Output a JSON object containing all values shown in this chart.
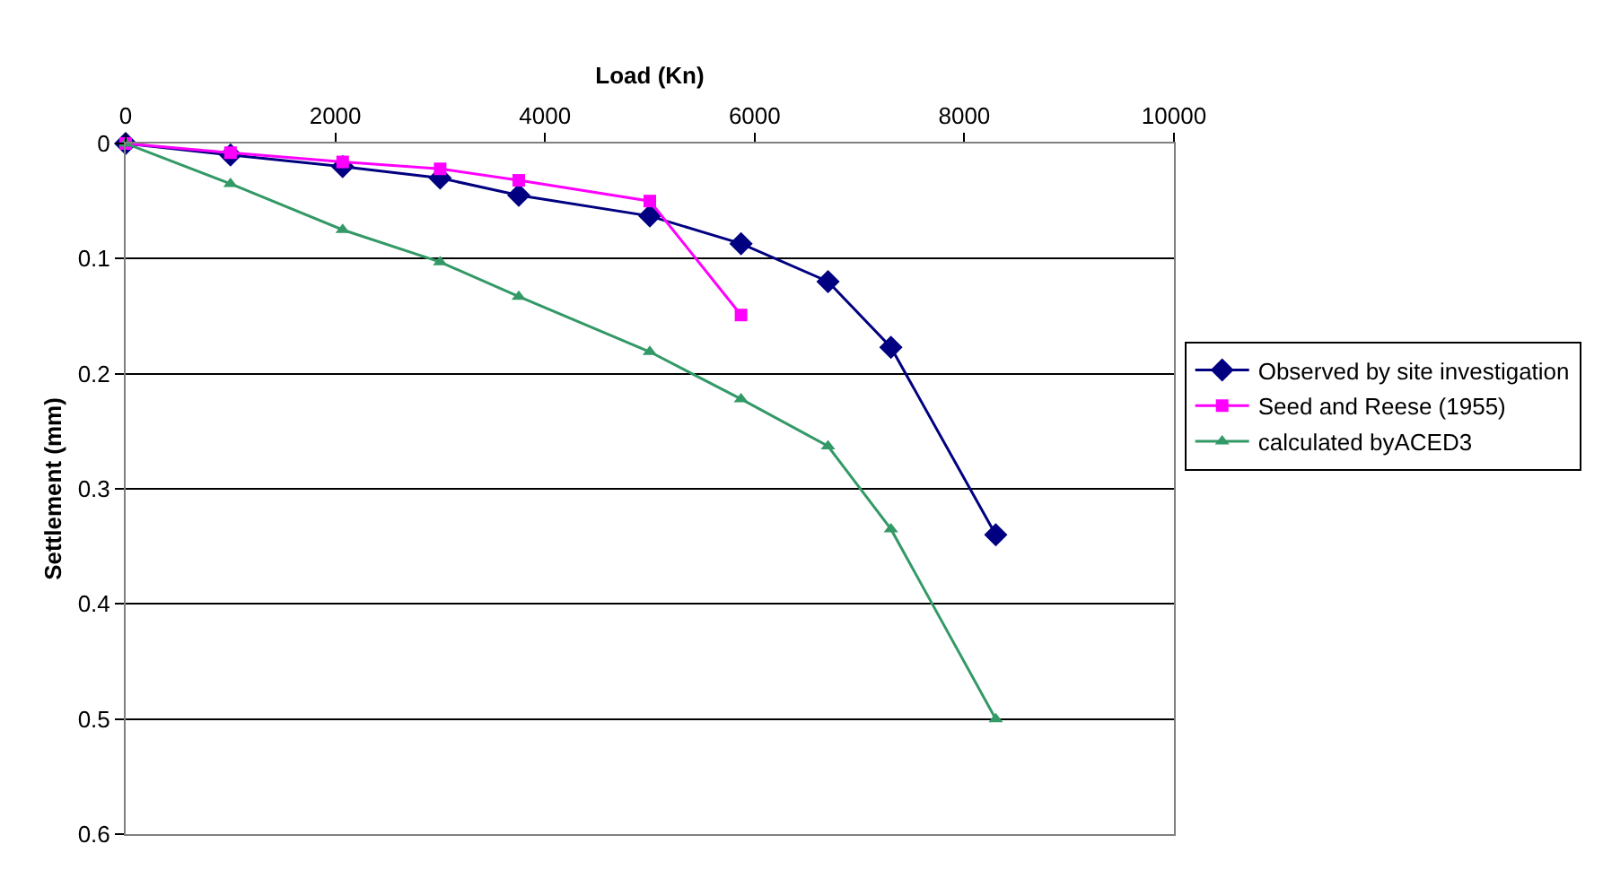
{
  "chart_data": {
    "type": "line",
    "xlabel": "Load (Kn)",
    "ylabel": "Settlement (mm)",
    "xlim": [
      0,
      10000
    ],
    "xticks": [
      0,
      2000,
      4000,
      6000,
      8000,
      10000
    ],
    "ylim": [
      0.6,
      0
    ],
    "yticks": [
      0,
      0.1,
      0.2,
      0.3,
      0.4,
      0.5,
      0.6
    ],
    "grid": "y",
    "legend": "right",
    "line_style": "solid",
    "series": [
      {
        "name": "Observed by site investigation",
        "color": "#000080",
        "marker": "diamond",
        "x": [
          0,
          1000,
          2070,
          3000,
          3750,
          5000,
          5870,
          6700,
          7300,
          8300
        ],
        "values": [
          0,
          0.01,
          0.02,
          0.03,
          0.045,
          0.063,
          0.087,
          0.12,
          0.177,
          0.34
        ]
      },
      {
        "name": "Seed and Reese (1955)",
        "color": "#ff00ff",
        "marker": "square",
        "x": [
          0,
          1000,
          2070,
          3000,
          3750,
          5000,
          5870
        ],
        "values": [
          0,
          0.008,
          0.016,
          0.022,
          0.032,
          0.05,
          0.149
        ]
      },
      {
        "name": "calculated byACED3",
        "color": "#339966",
        "marker": "triangle",
        "x": [
          0,
          1000,
          2070,
          3000,
          3750,
          5000,
          5870,
          6700,
          7300,
          8300
        ],
        "values": [
          0,
          0.035,
          0.075,
          0.103,
          0.133,
          0.181,
          0.222,
          0.263,
          0.335,
          0.5
        ]
      }
    ]
  }
}
